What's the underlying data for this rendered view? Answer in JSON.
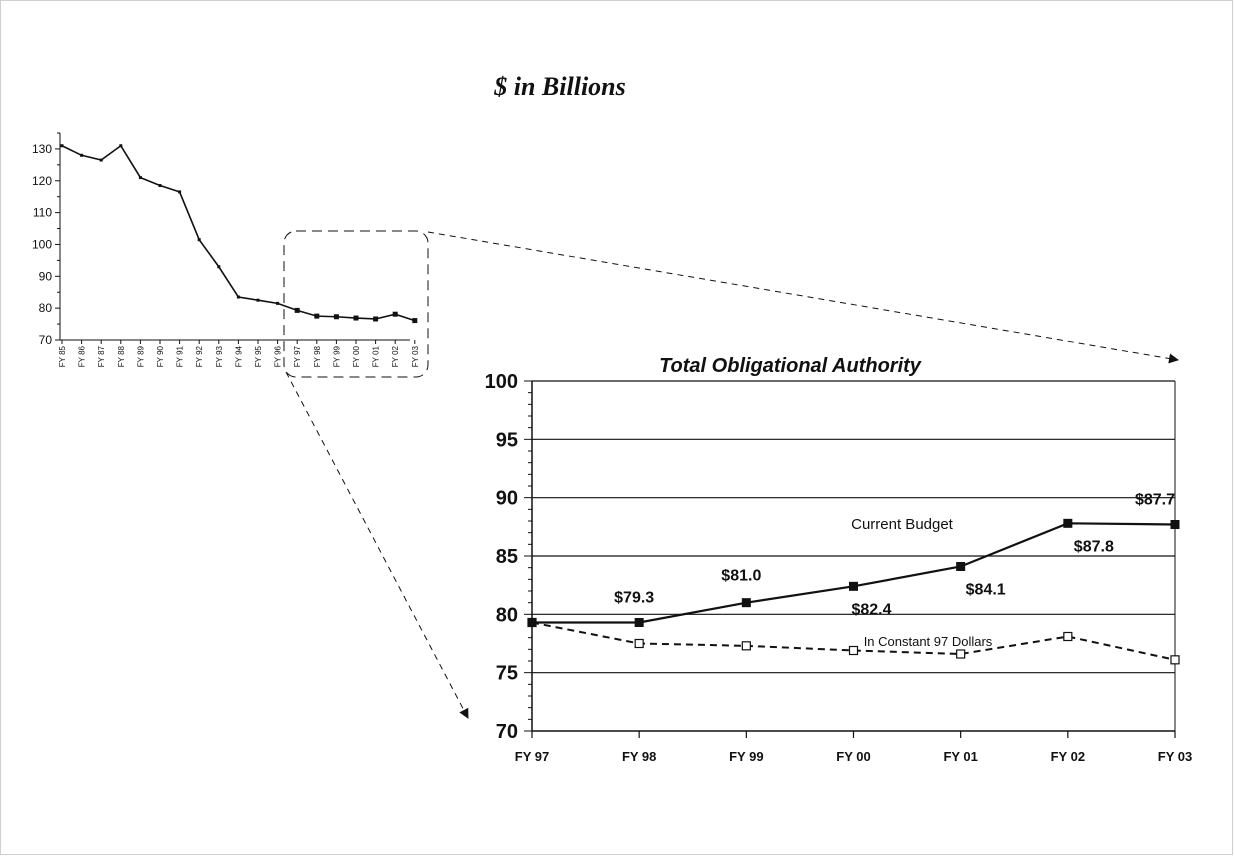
{
  "page_title": "$ in Billions",
  "chart_data": [
    {
      "type": "line",
      "title": "",
      "xlabel": "",
      "ylabel": "",
      "ylim": [
        70,
        135
      ],
      "yticks": [
        70,
        80,
        90,
        100,
        110,
        120,
        130
      ],
      "categories": [
        "FY 85",
        "FY 86",
        "FY 87",
        "FY 88",
        "FY 89",
        "FY 90",
        "FY 91",
        "FY 92",
        "FY 93",
        "FY 94",
        "FY 95",
        "FY 96",
        "FY 97",
        "FY 98",
        "FY 99",
        "FY 00",
        "FY 01",
        "FY 02",
        "FY 03"
      ],
      "series": [
        {
          "values": [
            131,
            128,
            126.5,
            131,
            121,
            118.5,
            116.5,
            101.5,
            93,
            83.5,
            82.5,
            81.5,
            79.3,
            77.5,
            77.3,
            76.9,
            76.6,
            78.1,
            76.1
          ]
        }
      ]
    },
    {
      "type": "line",
      "title": "Total Obligational Authority",
      "xlabel": "",
      "ylabel": "",
      "ylim": [
        70,
        100
      ],
      "yticks": [
        70,
        75,
        80,
        85,
        90,
        95,
        100
      ],
      "categories": [
        "FY 97",
        "FY 98",
        "FY 99",
        "FY 00",
        "FY 01",
        "FY 02",
        "FY 03"
      ],
      "series": [
        {
          "name": "Current Budget",
          "values": [
            79.3,
            79.3,
            81.0,
            82.4,
            84.1,
            87.8,
            87.7
          ],
          "labels": [
            "",
            "$79.3",
            "$81.0",
            "$82.4",
            "$84.1",
            "$87.8",
            "$87.7"
          ],
          "line_style": "solid",
          "marker": "filled-square"
        },
        {
          "name": "In Constant 97 Dollars",
          "values": [
            79.3,
            77.5,
            77.3,
            76.9,
            76.6,
            78.1,
            76.1
          ],
          "line_style": "dashed",
          "marker": "open-square"
        }
      ],
      "grid": true
    }
  ],
  "colors": {
    "ink": "#111111",
    "background": "#ffffff"
  }
}
